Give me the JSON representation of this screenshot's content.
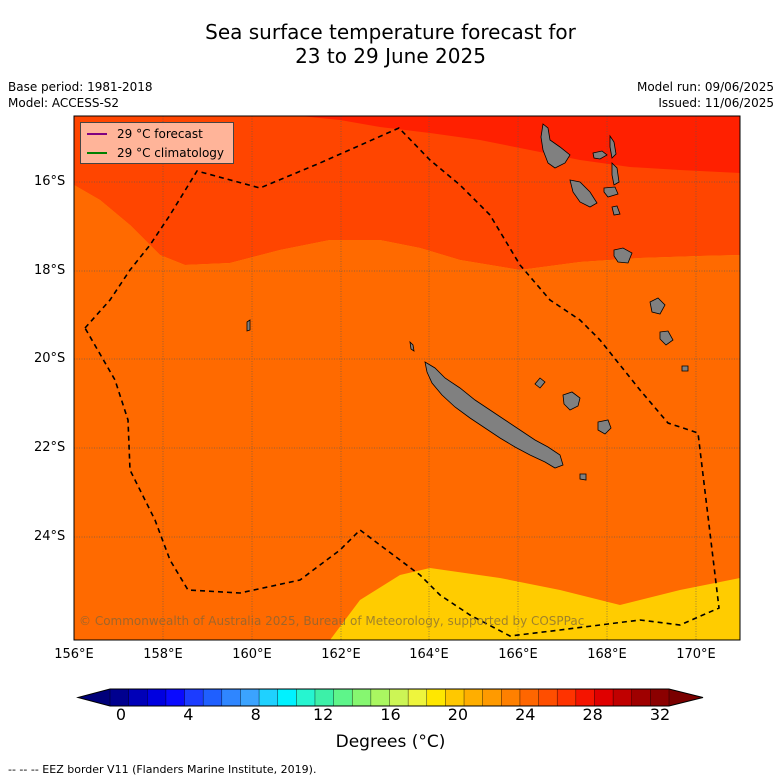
{
  "title": {
    "line1": "Sea surface temperature forecast for",
    "line2": "23 to 29 June 2025"
  },
  "meta": {
    "base_period": "Base period: 1981-2018",
    "model": "Model: ACCESS-S2",
    "model_run": "Model run: 09/06/2025",
    "issued": "Issued: 11/06/2025"
  },
  "legend": {
    "forecast": "29 °C  forecast",
    "climatology": "29 °C  climatology",
    "forecast_color": "#800080",
    "climatology_color": "#008000"
  },
  "axes": {
    "y_ticks": [
      "16°S",
      "18°S",
      "20°S",
      "22°S",
      "24°S"
    ],
    "x_ticks": [
      "156°E",
      "158°E",
      "160°E",
      "162°E",
      "164°E",
      "166°E",
      "168°E",
      "170°E"
    ]
  },
  "copyright": "© Commonwealth of Australia 2025, Bureau of Meteorology, supported by COSPPac",
  "colorbar": {
    "labels": [
      "0",
      "4",
      "8",
      "12",
      "16",
      "20",
      "24",
      "28",
      "32"
    ],
    "title": "Degrees (°C)",
    "colors": [
      "#00008f",
      "#0000b8",
      "#0000e0",
      "#0a0aff",
      "#1c3cff",
      "#1f5fff",
      "#2f86ff",
      "#3ba3ff",
      "#1fd1ff",
      "#00f2ff",
      "#26f5d0",
      "#3df0a8",
      "#5ef58a",
      "#86f770",
      "#aaf761",
      "#ccf555",
      "#eef53d",
      "#ffe700",
      "#ffc800",
      "#ffae00",
      "#ff9a00",
      "#ff8000",
      "#ff6600",
      "#ff4e00",
      "#ff3300",
      "#f51400",
      "#e00000",
      "#c00000",
      "#9f0000",
      "#8b0000"
    ],
    "under_color": "#00007a",
    "over_color": "#7a0000"
  },
  "footnote": "--  --  -- EEZ border V11 (Flanders Marine Institute, 2019).",
  "colors": {
    "band_25": "#ffa500",
    "band_24": "#ffbf00",
    "band_26": "#ff8c00",
    "band_27": "#ff6a00",
    "band_28": "#ff4500",
    "band_29": "#ff2000",
    "land": "#808080"
  }
}
